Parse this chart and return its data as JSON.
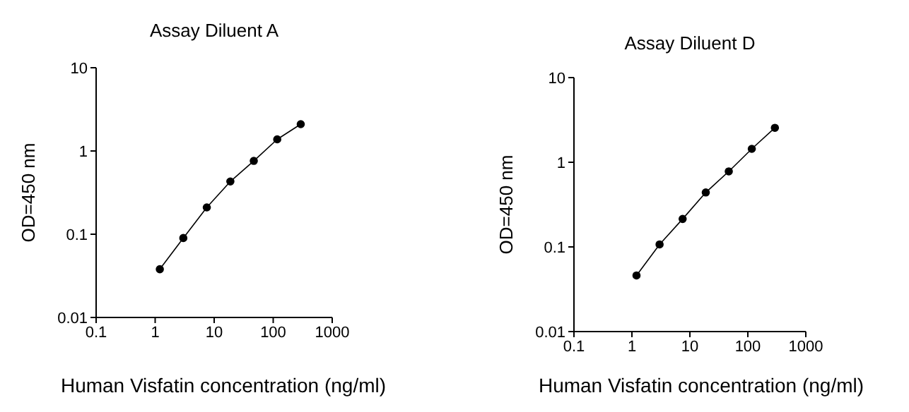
{
  "chart_data": [
    {
      "type": "line",
      "title": "Assay Diluent A",
      "xlabel": "Human Visfatin concentration (ng/ml)",
      "ylabel": "OD=450 nm",
      "log": "xy",
      "xlim": [
        0.1,
        1000
      ],
      "xticks": [
        0.1,
        1,
        10,
        100,
        1000
      ],
      "ylim": [
        0.01,
        10
      ],
      "yticks": [
        0.01,
        0.1,
        1,
        10
      ],
      "marker": "circle",
      "line_style": "solid",
      "series": [
        {
          "color": "#000000",
          "x": [
            1.2,
            3.0,
            7.5,
            18.8,
            46.9,
            117,
            293
          ],
          "values": [
            0.038,
            0.09,
            0.21,
            0.43,
            0.76,
            1.38,
            2.1
          ]
        }
      ]
    },
    {
      "type": "line",
      "title": "Assay Diluent D",
      "xlabel": "Human Visfatin concentration (ng/ml)",
      "ylabel": "OD=450 nm",
      "log": "xy",
      "xlim": [
        0.1,
        1000
      ],
      "xticks": [
        0.1,
        1,
        10,
        100,
        1000
      ],
      "ylim": [
        0.01,
        10
      ],
      "yticks": [
        0.01,
        0.1,
        1,
        10
      ],
      "marker": "circle",
      "line_style": "solid",
      "series": [
        {
          "color": "#000000",
          "x": [
            1.2,
            3.0,
            7.5,
            18.8,
            46.9,
            117,
            293
          ],
          "values": [
            0.046,
            0.107,
            0.214,
            0.44,
            0.78,
            1.44,
            2.55
          ]
        }
      ]
    }
  ]
}
